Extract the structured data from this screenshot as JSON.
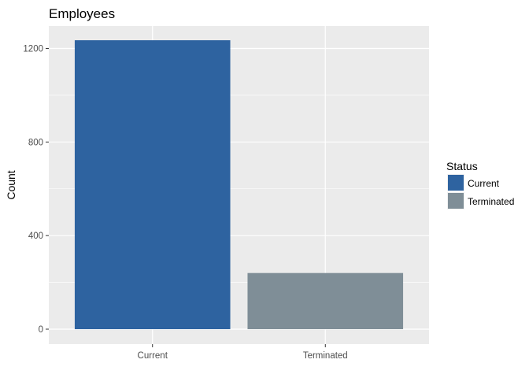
{
  "chart_data": {
    "type": "bar",
    "title": "Employees",
    "xlabel": "",
    "ylabel": "Count",
    "categories": [
      "Current",
      "Terminated"
    ],
    "values": [
      1235,
      240
    ],
    "colors": [
      "#2E63A0",
      "#7F8E97"
    ],
    "ylim": [
      0,
      1300
    ],
    "yticks": [
      0,
      400,
      800,
      1200
    ],
    "grid": true,
    "panel_background": "#EBEBEB",
    "legend": {
      "title": "Status",
      "position": "right",
      "entries": [
        "Current",
        "Terminated"
      ]
    }
  }
}
